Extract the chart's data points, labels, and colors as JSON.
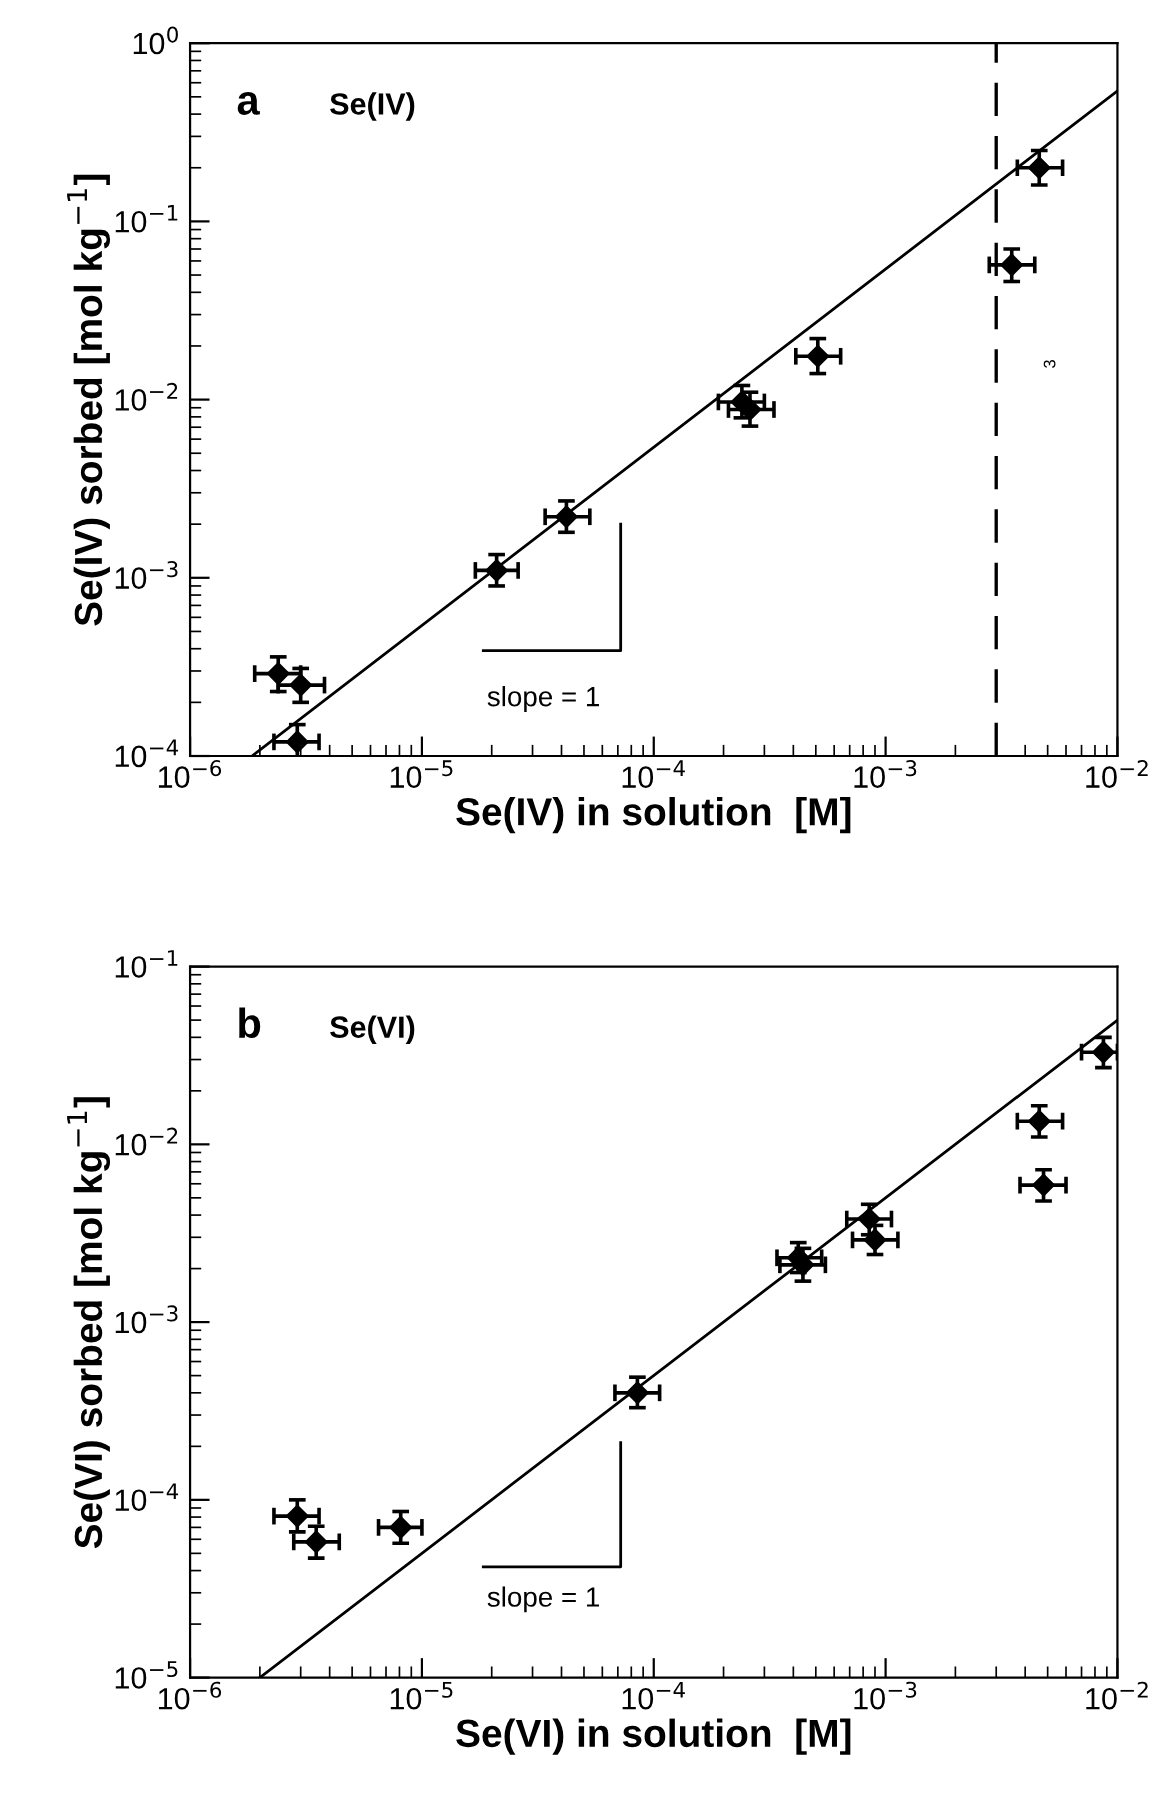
{
  "chart_data": [
    {
      "type": "scatter",
      "title": "a",
      "subtitle": "Se(IV)",
      "xlabel": "Se(IV) in solution  [M]",
      "ylabel": "Se(IV) sorbed [mol kg$^{−1}$]",
      "log": "xy",
      "xlim": [
        1e-06,
        0.01
      ],
      "ylim": [
        0.0001,
        1
      ],
      "xticks": [
        {
          "value": 1e-06,
          "label": "10$^{−6}$"
        },
        {
          "value": 1e-05,
          "label": "10$^{−5}$"
        },
        {
          "value": 0.0001,
          "label": "10$^{−4}$"
        },
        {
          "value": 0.001,
          "label": "10$^{−3}$"
        },
        {
          "value": 0.01,
          "label": "10$^{−2}$"
        }
      ],
      "yticks": [
        {
          "value": 0.0001,
          "label": "10$^{−4}$"
        },
        {
          "value": 0.001,
          "label": "10$^{−3}$"
        },
        {
          "value": 0.01,
          "label": "10$^{−2}$"
        },
        {
          "value": 0.1,
          "label": "10$^{−1}$"
        },
        {
          "value": 1,
          "label": "10$^{0}$"
        }
      ],
      "series": [
        {
          "marker": "diamond",
          "color": "#000000",
          "x": [
            2.4e-06,
            3e-06,
            2.9e-06,
            2.1e-05,
            4.2e-05,
            0.00024,
            0.00026,
            0.00051,
            0.0035,
            0.0046
          ],
          "values": [
            0.00029,
            0.00025,
            0.00012,
            0.0011,
            0.0022,
            0.0097,
            0.0088,
            0.0175,
            0.057,
            0.2
          ],
          "xerrors": [
            [
              1.9e-06,
              3e-06
            ],
            [
              2.4e-06,
              3.8e-06
            ],
            [
              2.3e-06,
              3.6e-06
            ],
            [
              1.7e-05,
              2.6e-05
            ],
            [
              3.4e-05,
              5.3e-05
            ],
            [
              0.00019,
              0.0003
            ],
            [
              0.00021,
              0.00033
            ],
            [
              0.00041,
              0.00064
            ],
            [
              0.0028,
              0.0044
            ],
            [
              0.0037,
              0.0058
            ]
          ],
          "errors": [
            [
              0.00023,
              0.00036
            ],
            [
              0.0002,
              0.00031
            ],
            [
              9.6e-05,
              0.00015
            ],
            [
              0.0009,
              0.00135
            ],
            [
              0.0018,
              0.0027
            ],
            [
              0.0079,
              0.012
            ],
            [
              0.0071,
              0.011
            ],
            [
              0.014,
              0.022
            ],
            [
              0.046,
              0.07
            ],
            [
              0.16,
              0.25
            ]
          ]
        },
        {
          "type": "line",
          "color": "#000000",
          "x": [
            1.85e-06,
            0.01
          ],
          "values": [
            0.0001,
            0.54
          ]
        },
        {
          "type": "line",
          "color": "#000000",
          "x": [
            1.84e-05,
            7.2e-05,
            7.2e-05
          ],
          "values": [
            0.00039,
            0.00039,
            0.002
          ]
        }
      ],
      "ref_lines": [
        {
          "axis": "x",
          "value": 0.003,
          "line_style": "dashed",
          "color": "#000000"
        }
      ],
      "annotations": [
        "slope = 1",
        "3"
      ]
    },
    {
      "type": "scatter",
      "title": "b",
      "subtitle": "Se(VI)",
      "xlabel": "Se(VI) in solution  [M]",
      "ylabel": "Se(VI) sorbed [mol kg$^{−1}$]",
      "log": "xy",
      "xlim": [
        1e-06,
        0.01
      ],
      "ylim": [
        1e-05,
        0.1
      ],
      "xticks": [
        {
          "value": 1e-06,
          "label": "10$^{−6}$"
        },
        {
          "value": 1e-05,
          "label": "10$^{−5}$"
        },
        {
          "value": 0.0001,
          "label": "10$^{−4}$"
        },
        {
          "value": 0.001,
          "label": "10$^{−3}$"
        },
        {
          "value": 0.01,
          "label": "10$^{−2}$"
        }
      ],
      "yticks": [
        {
          "value": 1e-05,
          "label": "10$^{−5}$"
        },
        {
          "value": 0.0001,
          "label": "10$^{−4}$"
        },
        {
          "value": 0.001,
          "label": "10$^{−3}$"
        },
        {
          "value": 0.01,
          "label": "10$^{−2}$"
        },
        {
          "value": 0.1,
          "label": "10$^{−1}$"
        }
      ],
      "series": [
        {
          "marker": "diamond",
          "color": "#000000",
          "x": [
            2.9e-06,
            3.5e-06,
            8.1e-06,
            8.5e-05,
            0.00042,
            0.00044,
            0.00085,
            0.0009,
            0.0046,
            0.0048,
            0.0087
          ],
          "values": [
            8.1e-05,
            5.8e-05,
            7e-05,
            0.0004,
            0.0023,
            0.0021,
            0.0038,
            0.0029,
            0.0135,
            0.0059,
            0.033
          ],
          "xerrors": [
            [
              2.3e-06,
              3.6e-06
            ],
            [
              2.8e-06,
              4.4e-06
            ],
            [
              6.5e-06,
              1e-05
            ],
            [
              6.8e-05,
              0.000106
            ],
            [
              0.00034,
              0.00053
            ],
            [
              0.00035,
              0.00055
            ],
            [
              0.00068,
              0.00106
            ],
            [
              0.00072,
              0.00113
            ],
            [
              0.0037,
              0.0058
            ],
            [
              0.0038,
              0.006
            ],
            [
              0.007,
              0.01
            ]
          ],
          "errors": [
            [
              6.6e-05,
              0.0001
            ],
            [
              4.7e-05,
              7.1e-05
            ],
            [
              5.7e-05,
              8.6e-05
            ],
            [
              0.00033,
              0.00049
            ],
            [
              0.0019,
              0.0028
            ],
            [
              0.0017,
              0.0026
            ],
            [
              0.0031,
              0.0046
            ],
            [
              0.0024,
              0.0035
            ],
            [
              0.011,
              0.0165
            ],
            [
              0.0048,
              0.0072
            ],
            [
              0.027,
              0.04
            ]
          ]
        },
        {
          "type": "line",
          "color": "#000000",
          "x": [
            2e-06,
            0.01
          ],
          "values": [
            1e-05,
            0.05
          ]
        },
        {
          "type": "line",
          "color": "#000000",
          "x": [
            1.84e-05,
            7.2e-05,
            7.2e-05
          ],
          "values": [
            4.2e-05,
            4.2e-05,
            0.00021
          ]
        }
      ],
      "annotations": [
        "slope = 1"
      ]
    }
  ]
}
